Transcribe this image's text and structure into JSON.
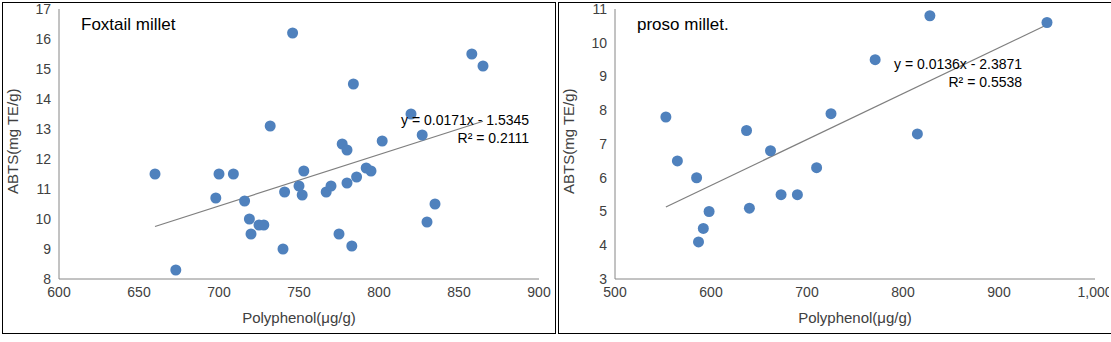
{
  "chart_data": [
    {
      "type": "scatter",
      "title": "Foxtail millet",
      "x_label": "Polyphenol(μg/g)",
      "y_label": "ABTS(mg TE/g)",
      "color": "#4f81bd",
      "marker": "circle",
      "x": [
        660,
        673,
        698,
        700,
        709,
        716,
        719,
        720,
        725,
        728,
        732,
        740,
        741,
        746,
        750,
        752,
        753,
        767,
        770,
        775,
        777,
        780,
        780,
        783,
        784,
        786,
        792,
        795,
        802,
        820,
        827,
        830,
        835,
        858,
        865
      ],
      "values": [
        11.5,
        8.3,
        10.7,
        11.5,
        11.5,
        10.6,
        10.0,
        9.5,
        9.8,
        9.8,
        13.1,
        9.0,
        10.9,
        16.2,
        11.1,
        10.8,
        11.6,
        10.9,
        11.1,
        9.5,
        12.5,
        12.3,
        11.2,
        9.1,
        14.5,
        11.4,
        11.7,
        11.6,
        12.6,
        13.5,
        12.8,
        9.9,
        10.5,
        15.5,
        15.1
      ],
      "xlim": [
        600,
        900
      ],
      "xticks": [
        600,
        650,
        700,
        750,
        800,
        850,
        900
      ],
      "ylim": [
        8,
        17
      ],
      "yticks": [
        8,
        9,
        10,
        11,
        12,
        13,
        14,
        15,
        16,
        17
      ],
      "grid": false,
      "trendline": {
        "slope": 0.0171,
        "intercept": -1.5345,
        "r2": 0.2111,
        "equation": "y = 0.0171x - 1.5345",
        "r2_label": "R² = 0.2111"
      }
    },
    {
      "type": "scatter",
      "title": "proso millet.",
      "x_label": "Polyphenol(μg/g)",
      "y_label": "ABTS(mg TE/g)",
      "color": "#4f81bd",
      "marker": "circle",
      "x": [
        553,
        565,
        585,
        587,
        592,
        598,
        637,
        640,
        662,
        673,
        690,
        710,
        725,
        771,
        815,
        828,
        950
      ],
      "values": [
        7.8,
        6.5,
        6.0,
        4.1,
        4.5,
        5.0,
        7.4,
        5.1,
        6.8,
        5.5,
        5.5,
        6.3,
        7.9,
        9.5,
        7.3,
        10.8,
        10.6
      ],
      "xlim": [
        500,
        1000
      ],
      "xticks": [
        500,
        600,
        700,
        800,
        900,
        {
          "value": 1000,
          "label": "1,000"
        }
      ],
      "ylim": [
        3,
        11
      ],
      "yticks": [
        3,
        4,
        5,
        6,
        7,
        8,
        9,
        10,
        11
      ],
      "grid": false,
      "trendline": {
        "slope": 0.0136,
        "intercept": -2.3871,
        "r2": 0.5538,
        "equation": "y = 0.0136x - 2.3871",
        "r2_label": "R² = 0.5538"
      }
    }
  ]
}
